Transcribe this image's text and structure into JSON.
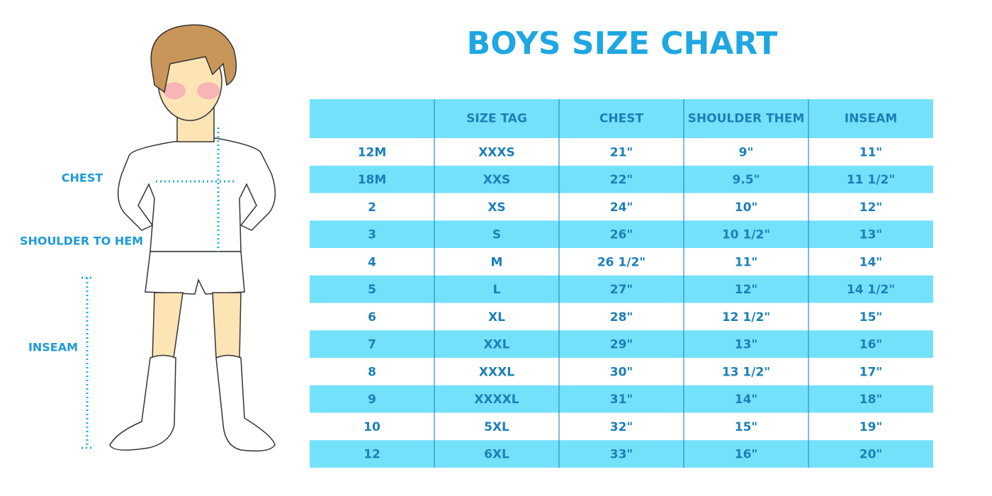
{
  "title": "BOYS SIZE CHART",
  "labels": {
    "chest": "CHEST",
    "shoulder_to_hem": "SHOULDER TO HEM",
    "inseam": "INSEAM"
  },
  "table": {
    "header": [
      "SIZE TAG",
      "CHEST",
      "SHOULDER THEM",
      "INSEAM"
    ],
    "rows": [
      [
        "12M",
        "XXXS",
        "21\"",
        "9\"",
        "11\""
      ],
      [
        "18M",
        "XXS",
        "22\"",
        "9.5\"",
        "11 1/2\""
      ],
      [
        "2",
        "XS",
        "24\"",
        "10\"",
        "12\""
      ],
      [
        "3",
        "S",
        "26\"",
        "10 1/2\"",
        "13\""
      ],
      [
        "4",
        "M",
        "26 1/2\"",
        "11\"",
        "14\""
      ],
      [
        "5",
        "L",
        "27\"",
        "12\"",
        "14 1/2\""
      ],
      [
        "6",
        "XL",
        "28\"",
        "12 1/2\"",
        "15\""
      ],
      [
        "7",
        "XXL",
        "29\"",
        "13\"",
        "16\""
      ],
      [
        "8",
        "XXXL",
        "30\"",
        "13 1/2\"",
        "17\""
      ],
      [
        "9",
        "XXXXL",
        "31\"",
        "14\"",
        "18\""
      ],
      [
        "10",
        "5XL",
        "32\"",
        "15\"",
        "19\""
      ],
      [
        "12",
        "6XL",
        "33\"",
        "16\"",
        "20\""
      ]
    ]
  }
}
